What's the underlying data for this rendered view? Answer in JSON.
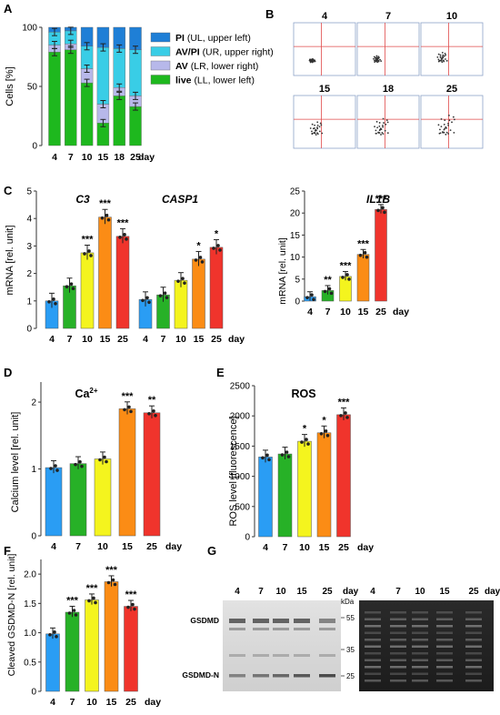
{
  "panels": {
    "A": "A",
    "B": "B",
    "C": "C",
    "D": "D",
    "E": "E",
    "F": "F",
    "G": "G"
  },
  "colors": {
    "pi": "#1f7fd6",
    "avpi": "#39cde6",
    "av": "#b7b8ea",
    "live": "#1eb81e",
    "d4": "#2a9df4",
    "d7": "#27b127",
    "d10": "#f4f41e",
    "d15": "#fb8c15",
    "d25": "#f0342c"
  },
  "day_word": "day",
  "chart_data": [
    {
      "panel": "A",
      "type": "bar",
      "stacked": true,
      "categories": [
        "4",
        "7",
        "10",
        "15",
        "18",
        "25"
      ],
      "ylabel": "Cells [%]",
      "ylim": [
        0,
        100
      ],
      "yticks": [
        0,
        50,
        100
      ],
      "series": [
        {
          "name": "live",
          "desc": "(LL, lower left)",
          "values": [
            79,
            81,
            53,
            19,
            42,
            33
          ]
        },
        {
          "name": "AV",
          "desc": "(LR, lower right)",
          "values": [
            6,
            5,
            12,
            16,
            7,
            9
          ]
        },
        {
          "name": "AV/PI",
          "desc": "(UR, upper right)",
          "values": [
            11,
            11,
            19,
            48,
            33,
            39
          ]
        },
        {
          "name": "PI",
          "desc": "(UL, upper left)",
          "values": [
            4,
            3,
            16,
            17,
            18,
            19
          ]
        }
      ]
    },
    {
      "panel": "B",
      "type": "scatter",
      "plots": [
        "4",
        "7",
        "10",
        "15",
        "18",
        "25"
      ]
    },
    {
      "panel": "C-left",
      "type": "bar",
      "ylabel": "mRNA [rel. unit]",
      "ylim": [
        0,
        5
      ],
      "yticks": [
        0,
        1,
        2,
        3,
        4,
        5
      ],
      "genes": [
        "C3",
        "CASP1"
      ],
      "categories": [
        "4",
        "7",
        "10",
        "15",
        "25"
      ],
      "series": [
        {
          "name": "C3",
          "values": [
            1.0,
            1.55,
            2.75,
            4.05,
            3.35
          ],
          "sig": [
            "",
            "",
            "***",
            "***",
            "***"
          ]
        },
        {
          "name": "CASP1",
          "values": [
            1.05,
            1.22,
            1.75,
            2.52,
            2.95
          ],
          "sig": [
            "",
            "",
            "",
            "*",
            "*"
          ]
        }
      ]
    },
    {
      "panel": "C-right",
      "type": "bar",
      "title": "IL1B",
      "ylabel": "mRNA [rel. unit]",
      "ylim": [
        0,
        25
      ],
      "yticks": [
        0,
        5,
        10,
        15,
        20,
        25
      ],
      "categories": [
        "4",
        "7",
        "10",
        "15",
        "25"
      ],
      "values": [
        1.0,
        2.4,
        5.6,
        10.6,
        20.8
      ],
      "sig": [
        "",
        "**",
        "***",
        "***",
        "***"
      ]
    },
    {
      "panel": "D",
      "type": "bar",
      "title": "Ca",
      "title_sup": "2+",
      "ylabel": "Calcium level [rel. unit]",
      "ylim": [
        0,
        2.3
      ],
      "yticks": [
        0,
        1,
        2
      ],
      "categories": [
        "4",
        "7",
        "10",
        "15",
        "25"
      ],
      "values": [
        1.02,
        1.08,
        1.15,
        1.9,
        1.84
      ],
      "sig": [
        "",
        "",
        "",
        "***",
        "**"
      ]
    },
    {
      "panel": "E",
      "type": "bar",
      "title": "ROS",
      "ylabel": "ROS level [fluorescence]",
      "ylim": [
        0,
        2500
      ],
      "yticks": [
        0,
        500,
        1000,
        1500,
        2000,
        2500
      ],
      "categories": [
        "4",
        "7",
        "10",
        "15",
        "25"
      ],
      "values": [
        1320,
        1370,
        1580,
        1720,
        2020
      ],
      "sig": [
        "",
        "",
        "*",
        "*",
        "***"
      ]
    },
    {
      "panel": "F",
      "type": "bar",
      "ylabel": "Cleaved GSDMD-N [rel. unit]",
      "ylim": [
        0,
        2.25
      ],
      "yticks": [
        0,
        0.5,
        1.0,
        1.5,
        2.0
      ],
      "ytick_labels": [
        "0",
        "0.5",
        "1.0",
        "1.5",
        "2.0"
      ],
      "categories": [
        "4",
        "7",
        "10",
        "15",
        "25"
      ],
      "values": [
        0.98,
        1.35,
        1.56,
        1.87,
        1.45
      ],
      "sig": [
        "",
        "***",
        "***",
        "***",
        "***"
      ]
    }
  ],
  "blot": {
    "lanes": [
      "4",
      "7",
      "10",
      "15",
      "25"
    ],
    "kda_label": "kDa",
    "markers": [
      "55",
      "35",
      "25"
    ],
    "band_labels": [
      "GSDMD",
      "GSDMD-N"
    ]
  }
}
